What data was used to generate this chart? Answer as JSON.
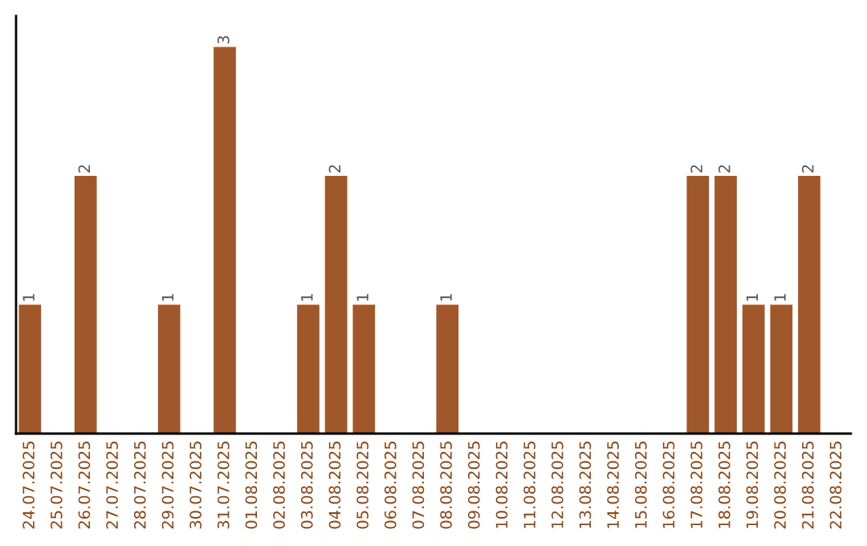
{
  "chart_data": {
    "type": "bar",
    "categories": [
      "24.07.2025",
      "25.07.2025",
      "26.07.2025",
      "27.07.2025",
      "28.07.2025",
      "29.07.2025",
      "30.07.2025",
      "31.07.2025",
      "01.08.2025",
      "02.08.2025",
      "03.08.2025",
      "04.08.2025",
      "05.08.2025",
      "06.08.2025",
      "07.08.2025",
      "08.08.2025",
      "09.08.2025",
      "10.08.2025",
      "11.08.2025",
      "12.08.2025",
      "13.08.2025",
      "14.08.2025",
      "15.08.2025",
      "16.08.2025",
      "17.08.2025",
      "18.08.2025",
      "19.08.2025",
      "20.08.2025",
      "21.08.2025",
      "22.08.2025"
    ],
    "values": [
      1,
      0,
      2,
      0,
      0,
      1,
      0,
      3,
      0,
      0,
      1,
      2,
      1,
      0,
      0,
      1,
      0,
      0,
      0,
      0,
      0,
      0,
      0,
      0,
      2,
      2,
      1,
      1,
      2,
      0
    ],
    "value_labels": [
      "1",
      null,
      "2",
      null,
      null,
      "1",
      null,
      "3",
      null,
      null,
      "1",
      "2",
      "1",
      null,
      null,
      "1",
      null,
      null,
      null,
      null,
      null,
      null,
      null,
      null,
      "2",
      "2",
      "1",
      "1",
      "2",
      null
    ],
    "color": "#a0572a",
    "tick_labels": "x",
    "grid": false,
    "legend": false
  }
}
